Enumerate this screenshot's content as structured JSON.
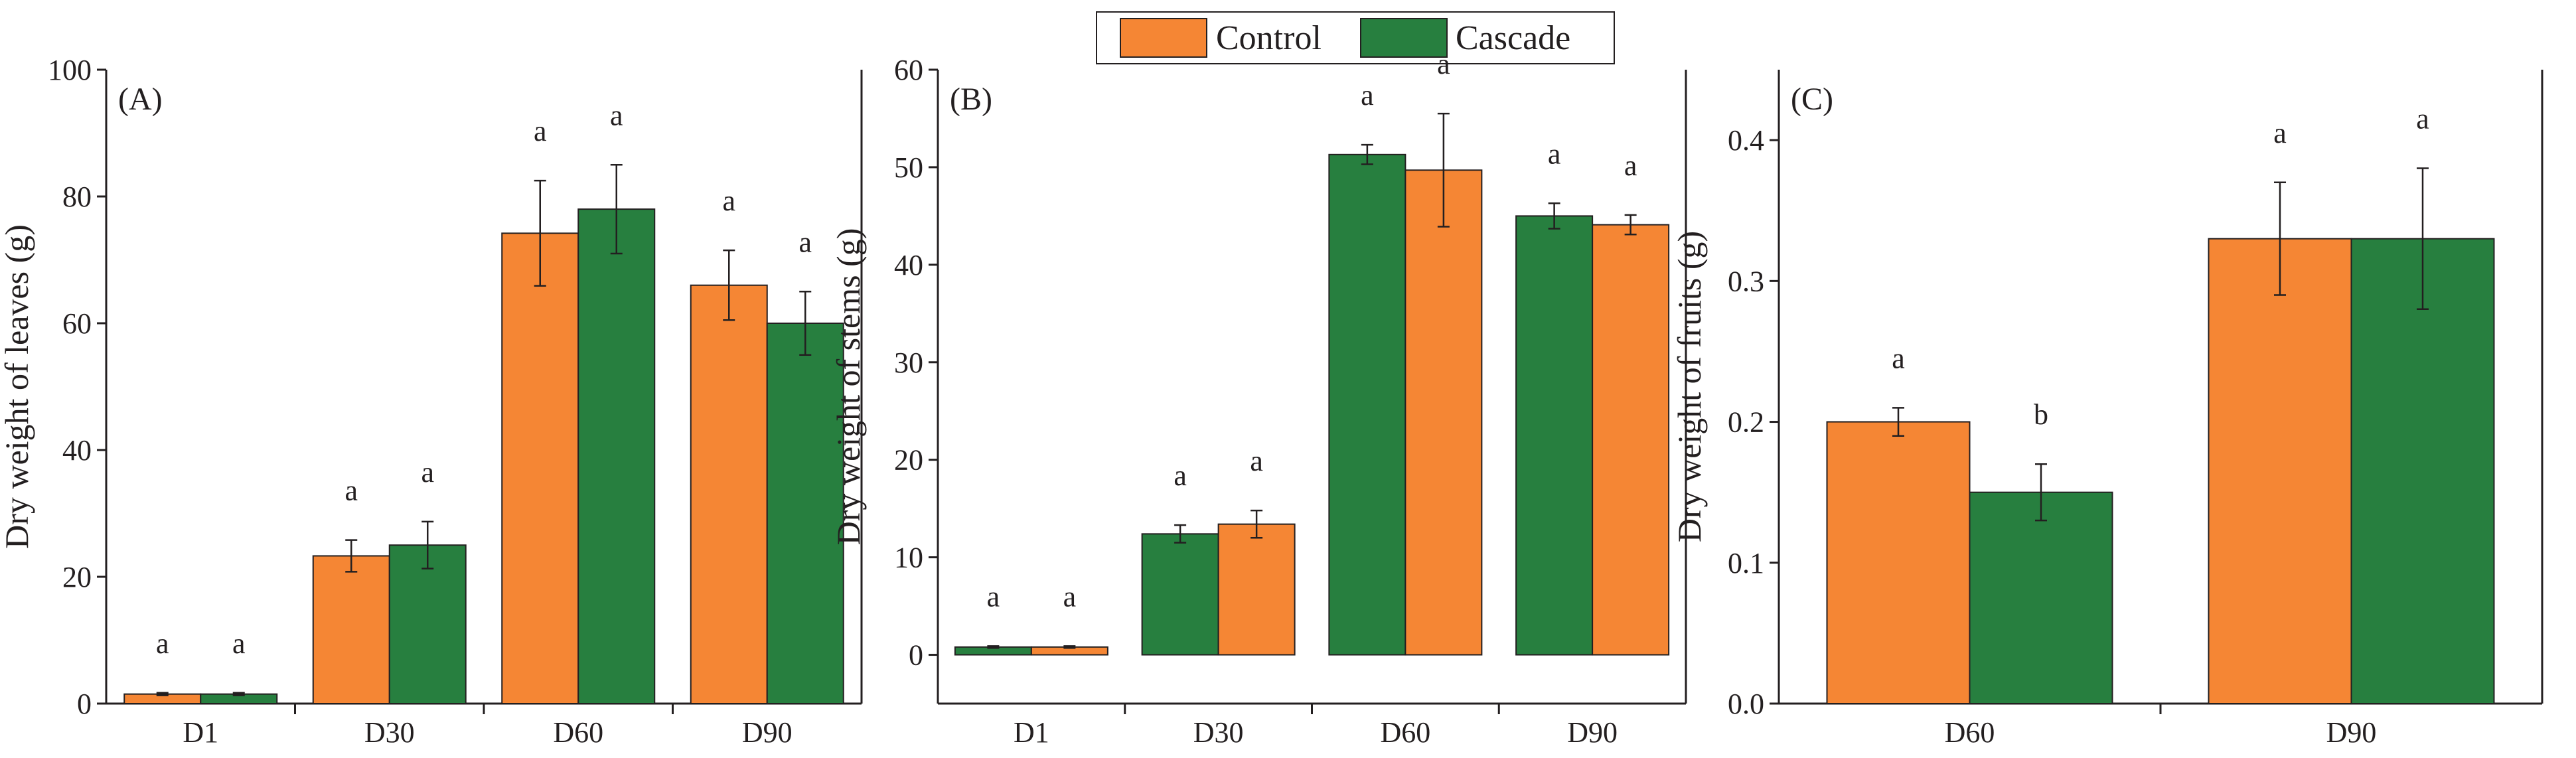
{
  "colors": {
    "control": "#f58634",
    "cascade": "#277f3f",
    "axis": "#231f20"
  },
  "legend": [
    {
      "name": "Control",
      "color": "#f58634"
    },
    {
      "name": "Cascade",
      "color": "#277f3f"
    }
  ],
  "chart_data": [
    {
      "type": "bar",
      "panel_label": "(A)",
      "ylabel": "Dry weight of leaves (g)",
      "ylim": [
        0,
        100
      ],
      "yticks": [
        0,
        20,
        40,
        60,
        80,
        100
      ],
      "ytick_labels": [
        "0",
        "20",
        "40",
        "60",
        "80",
        "100"
      ],
      "categories": [
        "D1",
        "D30",
        "D60",
        "D90"
      ],
      "series": [
        {
          "name": "Control",
          "color": "#f58634",
          "values": [
            1.5,
            23.3,
            74.2,
            66.0
          ],
          "errors": [
            0.2,
            2.5,
            8.3,
            5.5
          ],
          "labels": [
            "a",
            "a",
            "a",
            "a"
          ]
        },
        {
          "name": "Cascade",
          "color": "#277f3f",
          "values": [
            1.5,
            25.0,
            78.0,
            60.0
          ],
          "errors": [
            0.2,
            3.7,
            7.0,
            5.0
          ],
          "labels": [
            "a",
            "a",
            "a",
            "a"
          ]
        }
      ]
    },
    {
      "type": "bar",
      "panel_label": "(B)",
      "ylabel": "Dry weight of stems (g)",
      "ylim": [
        -5,
        60
      ],
      "yticks": [
        0,
        10,
        20,
        30,
        40,
        50,
        60
      ],
      "ytick_labels": [
        "0",
        "10",
        "20",
        "30",
        "40",
        "50",
        "60"
      ],
      "categories": [
        "D1",
        "D30",
        "D60",
        "D90"
      ],
      "series": [
        {
          "name": "Cascade",
          "color": "#277f3f",
          "values": [
            0.8,
            12.4,
            51.3,
            45.0
          ],
          "errors": [
            0.1,
            0.9,
            1.0,
            1.3
          ],
          "labels": [
            "a",
            "a",
            "a",
            "a"
          ]
        },
        {
          "name": "Control",
          "color": "#f58634",
          "values": [
            0.8,
            13.4,
            49.7,
            44.1
          ],
          "errors": [
            0.1,
            1.4,
            5.8,
            1.0
          ],
          "labels": [
            "a",
            "a",
            "a",
            "a"
          ]
        }
      ]
    },
    {
      "type": "bar",
      "panel_label": "(C)",
      "ylabel": "Dry weight of fruits (g)",
      "ylim": [
        0,
        0.45
      ],
      "yticks": [
        0,
        0.1,
        0.2,
        0.3,
        0.4
      ],
      "ytick_labels": [
        "0.0",
        "0.1",
        "0.2",
        "0.3",
        "0.4"
      ],
      "categories": [
        "D60",
        "D90"
      ],
      "series": [
        {
          "name": "Control",
          "color": "#f58634",
          "values": [
            0.2,
            0.33
          ],
          "errors": [
            0.01,
            0.04
          ],
          "labels": [
            "a",
            "a"
          ]
        },
        {
          "name": "Cascade",
          "color": "#277f3f",
          "values": [
            0.15,
            0.33
          ],
          "errors": [
            0.02,
            0.05
          ],
          "labels": [
            "b",
            "a"
          ]
        }
      ]
    }
  ]
}
